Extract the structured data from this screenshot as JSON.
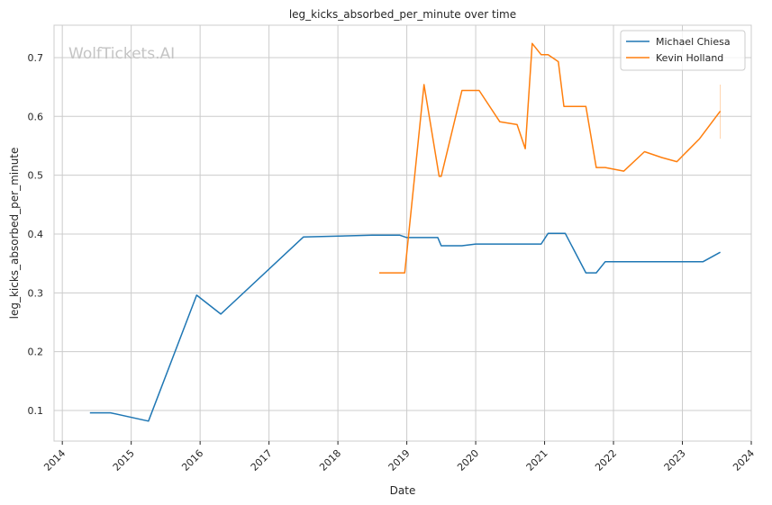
{
  "chart_data": {
    "type": "line",
    "title": "leg_kicks_absorbed_per_minute over time",
    "xlabel": "Date",
    "ylabel": "leg_kicks_absorbed_per_minute",
    "watermark": "WolfTickets.AI",
    "xlim": [
      2013.88,
      2024.0
    ],
    "ylim": [
      0.048,
      0.755
    ],
    "x_ticks": [
      2014,
      2015,
      2016,
      2017,
      2018,
      2019,
      2020,
      2021,
      2022,
      2023,
      2024
    ],
    "y_ticks": [
      0.1,
      0.2,
      0.3,
      0.4,
      0.5,
      0.6,
      0.7
    ],
    "grid": true,
    "legend_position": "top-right",
    "series": [
      {
        "name": "Michael Chiesa",
        "color": "#1f77b4",
        "points": [
          [
            2014.4,
            0.096
          ],
          [
            2014.7,
            0.096
          ],
          [
            2015.25,
            0.082
          ],
          [
            2015.95,
            0.296
          ],
          [
            2016.3,
            0.264
          ],
          [
            2017.5,
            0.395
          ],
          [
            2018.5,
            0.398
          ],
          [
            2018.9,
            0.398
          ],
          [
            2019.0,
            0.394
          ],
          [
            2019.45,
            0.394
          ],
          [
            2019.5,
            0.38
          ],
          [
            2019.8,
            0.38
          ],
          [
            2020.0,
            0.383
          ],
          [
            2020.95,
            0.383
          ],
          [
            2021.05,
            0.401
          ],
          [
            2021.3,
            0.401
          ],
          [
            2021.6,
            0.334
          ],
          [
            2021.75,
            0.334
          ],
          [
            2021.88,
            0.353
          ],
          [
            2023.3,
            0.353
          ],
          [
            2023.55,
            0.369
          ]
        ]
      },
      {
        "name": "Kevin Holland",
        "color": "#ff7f0e",
        "points": [
          [
            2018.6,
            0.334
          ],
          [
            2018.97,
            0.334
          ],
          [
            2019.25,
            0.654
          ],
          [
            2019.47,
            0.498
          ],
          [
            2019.5,
            0.498
          ],
          [
            2019.8,
            0.644
          ],
          [
            2020.05,
            0.644
          ],
          [
            2020.35,
            0.591
          ],
          [
            2020.6,
            0.586
          ],
          [
            2020.72,
            0.545
          ],
          [
            2020.82,
            0.724
          ],
          [
            2020.95,
            0.705
          ],
          [
            2021.05,
            0.705
          ],
          [
            2021.2,
            0.693
          ],
          [
            2021.28,
            0.617
          ],
          [
            2021.6,
            0.617
          ],
          [
            2021.75,
            0.513
          ],
          [
            2021.88,
            0.513
          ],
          [
            2022.15,
            0.507
          ],
          [
            2022.45,
            0.54
          ],
          [
            2022.7,
            0.53
          ],
          [
            2022.92,
            0.523
          ],
          [
            2023.25,
            0.562
          ],
          [
            2023.55,
            0.609
          ]
        ],
        "error_bar": {
          "x": 2023.55,
          "low": 0.562,
          "high": 0.654
        }
      }
    ]
  }
}
